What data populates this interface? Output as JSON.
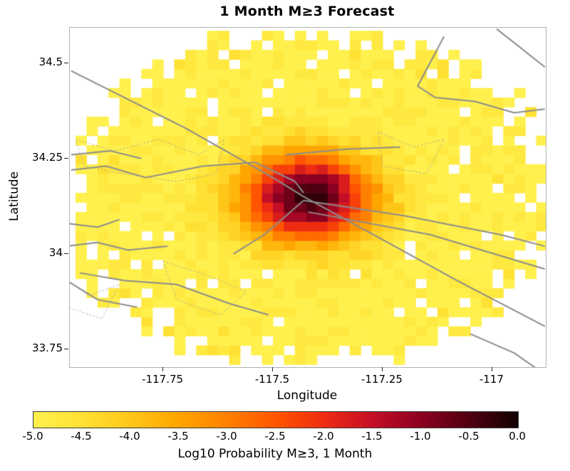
{
  "chart_data": {
    "type": "heatmap",
    "title": "1 Month M≥3 Forecast",
    "xlabel": "Longitude",
    "ylabel": "Latitude",
    "xlim": [
      -117.963,
      -116.878
    ],
    "ylim": [
      33.703,
      34.593
    ],
    "grid_on": false,
    "xticks": [
      {
        "value": -117.75,
        "label": "-117.75"
      },
      {
        "value": -117.5,
        "label": "-117.5"
      },
      {
        "value": -117.25,
        "label": "-117.25"
      },
      {
        "value": -117.0,
        "label": "-117"
      }
    ],
    "yticks": [
      {
        "value": 34.5,
        "label": "34.5"
      },
      {
        "value": 34.25,
        "label": "34.25"
      },
      {
        "value": 34.0,
        "label": "34"
      },
      {
        "value": 33.75,
        "label": "33.75"
      }
    ],
    "value_range": [
      -5,
      0
    ],
    "grid": {
      "lon_min": -117.95,
      "lon_step": 0.025,
      "cols": 43,
      "lat_min": 33.71,
      "lat_step": 0.025,
      "rows": 35
    },
    "field": {
      "center_lon": -117.42,
      "center_lat": 34.15,
      "radius_lon": 0.55,
      "radius_lat": 0.43,
      "peak_value": -0.2,
      "background_value": -5,
      "falloff": 3.7,
      "noise_amplitude": 0.45,
      "hole_probability": 0.06,
      "edge_raggedness": 0.2,
      "quantize_step": 0.25,
      "seed": 42
    },
    "colormap": [
      [
        -5.0,
        "#FFF04D"
      ],
      [
        -4.5,
        "#FFE133"
      ],
      [
        -4.0,
        "#FFC61A"
      ],
      [
        -3.5,
        "#FFA500"
      ],
      [
        -3.0,
        "#FF8000"
      ],
      [
        -2.5,
        "#FF5500"
      ],
      [
        -2.0,
        "#EE2C12"
      ],
      [
        -1.5,
        "#C40E26"
      ],
      [
        -1.0,
        "#8B0020"
      ],
      [
        -0.5,
        "#500010"
      ],
      [
        0.0,
        "#120000"
      ]
    ],
    "colorbar": {
      "label": "Log10 Probability M≥3, 1 Month",
      "ticks": [
        {
          "value": -5.0,
          "label": "-5.0"
        },
        {
          "value": -4.5,
          "label": "-4.5"
        },
        {
          "value": -4.0,
          "label": "-4.0"
        },
        {
          "value": -3.5,
          "label": "-3.5"
        },
        {
          "value": -3.0,
          "label": "-3.0"
        },
        {
          "value": -2.5,
          "label": "-2.5"
        },
        {
          "value": -2.0,
          "label": "-2.0"
        },
        {
          "value": -1.5,
          "label": "-1.5"
        },
        {
          "value": -1.0,
          "label": "-1.0"
        },
        {
          "value": -0.5,
          "label": "-0.5"
        },
        {
          "value": 0.0,
          "label": "0.0"
        }
      ]
    },
    "colors": {
      "fault": "#8c8c8c",
      "fault_dotted": "#9e9e9e",
      "frame": "#b3b3b3",
      "text": "#000000"
    },
    "fault_lines": [
      {
        "style": "solid",
        "width": 2,
        "points": [
          [
            -117.96,
            34.48
          ],
          [
            -117.7,
            34.33
          ],
          [
            -117.5,
            34.2
          ],
          [
            -117.43,
            34.15
          ]
        ]
      },
      {
        "style": "solid",
        "width": 2,
        "points": [
          [
            -117.43,
            34.15
          ],
          [
            -117.27,
            34.05
          ],
          [
            -117.08,
            33.93
          ],
          [
            -116.88,
            33.81
          ]
        ]
      },
      {
        "style": "solid",
        "width": 2,
        "points": [
          [
            -117.43,
            34.14
          ],
          [
            -117.2,
            34.1
          ],
          [
            -116.98,
            34.05
          ],
          [
            -116.88,
            34.02
          ]
        ]
      },
      {
        "style": "solid",
        "width": 2,
        "points": [
          [
            -117.42,
            34.11
          ],
          [
            -117.14,
            34.05
          ],
          [
            -116.88,
            33.96
          ]
        ]
      },
      {
        "style": "solid",
        "width": 2,
        "points": [
          [
            -117.96,
            34.22
          ],
          [
            -117.88,
            34.23
          ],
          [
            -117.79,
            34.2
          ],
          [
            -117.66,
            34.23
          ],
          [
            -117.54,
            34.24
          ],
          [
            -117.45,
            34.19
          ],
          [
            -117.43,
            34.16
          ]
        ]
      },
      {
        "style": "solid",
        "width": 2,
        "points": [
          [
            -117.47,
            34.26
          ],
          [
            -117.33,
            34.275
          ],
          [
            -117.21,
            34.28
          ]
        ]
      },
      {
        "style": "solid",
        "width": 2,
        "points": [
          [
            -117.96,
            34.26
          ],
          [
            -117.87,
            34.27
          ],
          [
            -117.8,
            34.25
          ]
        ]
      },
      {
        "style": "solid",
        "width": 2,
        "points": [
          [
            -117.11,
            34.57
          ],
          [
            -117.17,
            34.44
          ],
          [
            -117.13,
            34.41
          ],
          [
            -117.04,
            34.4
          ],
          [
            -116.95,
            34.37
          ],
          [
            -116.88,
            34.38
          ]
        ]
      },
      {
        "style": "solid",
        "width": 2,
        "points": [
          [
            -116.99,
            34.59
          ],
          [
            -116.88,
            34.49
          ]
        ]
      },
      {
        "style": "solid",
        "width": 2,
        "points": [
          [
            -117.97,
            34.02
          ],
          [
            -117.9,
            34.03
          ],
          [
            -117.83,
            34.01
          ],
          [
            -117.74,
            34.02
          ]
        ]
      },
      {
        "style": "solid",
        "width": 2,
        "points": [
          [
            -117.94,
            33.95
          ],
          [
            -117.84,
            33.93
          ],
          [
            -117.72,
            33.92
          ],
          [
            -117.6,
            33.87
          ],
          [
            -117.51,
            33.84
          ]
        ]
      },
      {
        "style": "solid",
        "width": 2,
        "points": [
          [
            -117.97,
            33.93
          ],
          [
            -117.9,
            33.88
          ],
          [
            -117.81,
            33.86
          ]
        ]
      },
      {
        "style": "solid",
        "width": 2,
        "points": [
          [
            -117.05,
            33.79
          ],
          [
            -116.95,
            33.74
          ],
          [
            -116.9,
            33.7
          ]
        ]
      },
      {
        "style": "solid",
        "width": 2,
        "points": [
          [
            -117.43,
            34.14
          ],
          [
            -117.52,
            34.05
          ],
          [
            -117.59,
            34.0
          ]
        ]
      },
      {
        "style": "solid",
        "width": 2,
        "points": [
          [
            -117.97,
            34.08
          ],
          [
            -117.9,
            34.07
          ],
          [
            -117.85,
            34.09
          ]
        ]
      },
      {
        "style": "dotted",
        "width": 1,
        "points": [
          [
            -117.95,
            34.3
          ],
          [
            -117.86,
            34.27
          ],
          [
            -117.76,
            34.3
          ],
          [
            -117.67,
            34.26
          ],
          [
            -117.61,
            34.3
          ],
          [
            -117.63,
            34.21
          ],
          [
            -117.72,
            34.19
          ],
          [
            -117.84,
            34.21
          ],
          [
            -117.93,
            34.23
          ],
          [
            -117.95,
            34.3
          ]
        ]
      },
      {
        "style": "dotted",
        "width": 1,
        "points": [
          [
            -117.26,
            34.32
          ],
          [
            -117.18,
            34.28
          ],
          [
            -117.11,
            34.3
          ],
          [
            -117.15,
            34.21
          ],
          [
            -117.25,
            34.23
          ],
          [
            -117.26,
            34.32
          ]
        ]
      },
      {
        "style": "dotted",
        "width": 1,
        "points": [
          [
            -117.99,
            33.95
          ],
          [
            -117.92,
            33.89
          ],
          [
            -117.85,
            33.92
          ],
          [
            -117.89,
            33.83
          ],
          [
            -117.97,
            33.86
          ],
          [
            -117.99,
            33.95
          ]
        ]
      },
      {
        "style": "dotted",
        "width": 1,
        "points": [
          [
            -117.75,
            33.98
          ],
          [
            -117.64,
            33.94
          ],
          [
            -117.56,
            33.9
          ],
          [
            -117.62,
            33.84
          ],
          [
            -117.72,
            33.88
          ],
          [
            -117.75,
            33.98
          ]
        ]
      }
    ]
  }
}
